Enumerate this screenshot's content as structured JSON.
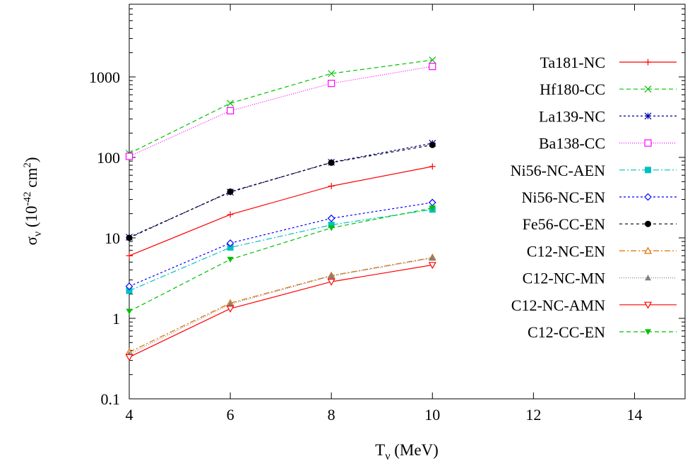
{
  "chart_data": {
    "type": "line",
    "title": "",
    "xlabel": "T",
    "xlabel_sub": "ν",
    "xlabel_unit": " (MeV)",
    "ylabel": "σ",
    "ylabel_sub": "ν",
    "ylabel_unit_prefix": " (10",
    "ylabel_unit_exp": "-42",
    "ylabel_unit_mid": " cm",
    "ylabel_unit_exp2": "2",
    "ylabel_unit_suffix": ")",
    "xlim": [
      4,
      15
    ],
    "ylim": [
      0.1,
      8000
    ],
    "yscale": "log",
    "grid": false,
    "legend_position": "right",
    "x_ticks": [
      {
        "v": 4,
        "label": "4"
      },
      {
        "v": 6,
        "label": "6"
      },
      {
        "v": 8,
        "label": "8"
      },
      {
        "v": 10,
        "label": "10"
      },
      {
        "v": 12,
        "label": "12"
      },
      {
        "v": 14,
        "label": "14"
      }
    ],
    "y_ticks": [
      {
        "v": 0.1,
        "label": "0.1"
      },
      {
        "v": 1,
        "label": "1"
      },
      {
        "v": 10,
        "label": "10"
      },
      {
        "v": 100,
        "label": "100"
      },
      {
        "v": 1000,
        "label": "1000"
      }
    ],
    "x": [
      4,
      6,
      8,
      10
    ],
    "series": [
      {
        "name": "Ta181-NC",
        "color": "#ff0000",
        "dash": "",
        "marker": "plus",
        "values": [
          6,
          19.5,
          44,
          77
        ]
      },
      {
        "name": "Hf180-CC",
        "color": "#00c000",
        "dash": "6,4",
        "marker": "x",
        "values": [
          112,
          470,
          1100,
          1620
        ]
      },
      {
        "name": "La139-NC",
        "color": "#0000a0",
        "dash": "3,3",
        "marker": "star",
        "values": [
          10.2,
          37,
          87,
          150
        ]
      },
      {
        "name": "Ba138-CC",
        "color": "#ff00ff",
        "dash": "1,2",
        "marker": "square-open",
        "values": [
          103,
          380,
          830,
          1350
        ]
      },
      {
        "name": "Ni56-NC-AEN",
        "color": "#00c0c0",
        "dash": "8,3,2,3",
        "marker": "square-filled",
        "values": [
          2.2,
          7.6,
          14.5,
          22.5
        ]
      },
      {
        "name": "Ni56-NC-EN",
        "color": "#0000ff",
        "dash": "3,3",
        "marker": "diamond-open",
        "values": [
          2.5,
          8.6,
          17.5,
          27.5
        ]
      },
      {
        "name": "Fe56-CC-EN",
        "color": "#000000",
        "dash": "4,4",
        "marker": "circle-filled",
        "values": [
          10,
          37.5,
          86,
          143
        ]
      },
      {
        "name": "C12-NC-EN",
        "color": "#e07000",
        "dash": "8,3,2,3",
        "marker": "triangle-open",
        "values": [
          0.38,
          1.55,
          3.4,
          5.7
        ]
      },
      {
        "name": "C12-NC-MN",
        "color": "#808080",
        "dash": "1,2",
        "marker": "triangle-filled",
        "values": [
          0.36,
          1.5,
          3.35,
          5.6
        ]
      },
      {
        "name": "C12-NC-AMN",
        "color": "#ff0000",
        "dash": "",
        "marker": "triangle-down-open",
        "values": [
          0.33,
          1.32,
          2.85,
          4.6
        ]
      },
      {
        "name": "C12-CC-EN",
        "color": "#00c000",
        "dash": "6,4",
        "marker": "triangle-down-filled",
        "values": [
          1.22,
          5.4,
          13.3,
          23.5
        ]
      }
    ]
  }
}
